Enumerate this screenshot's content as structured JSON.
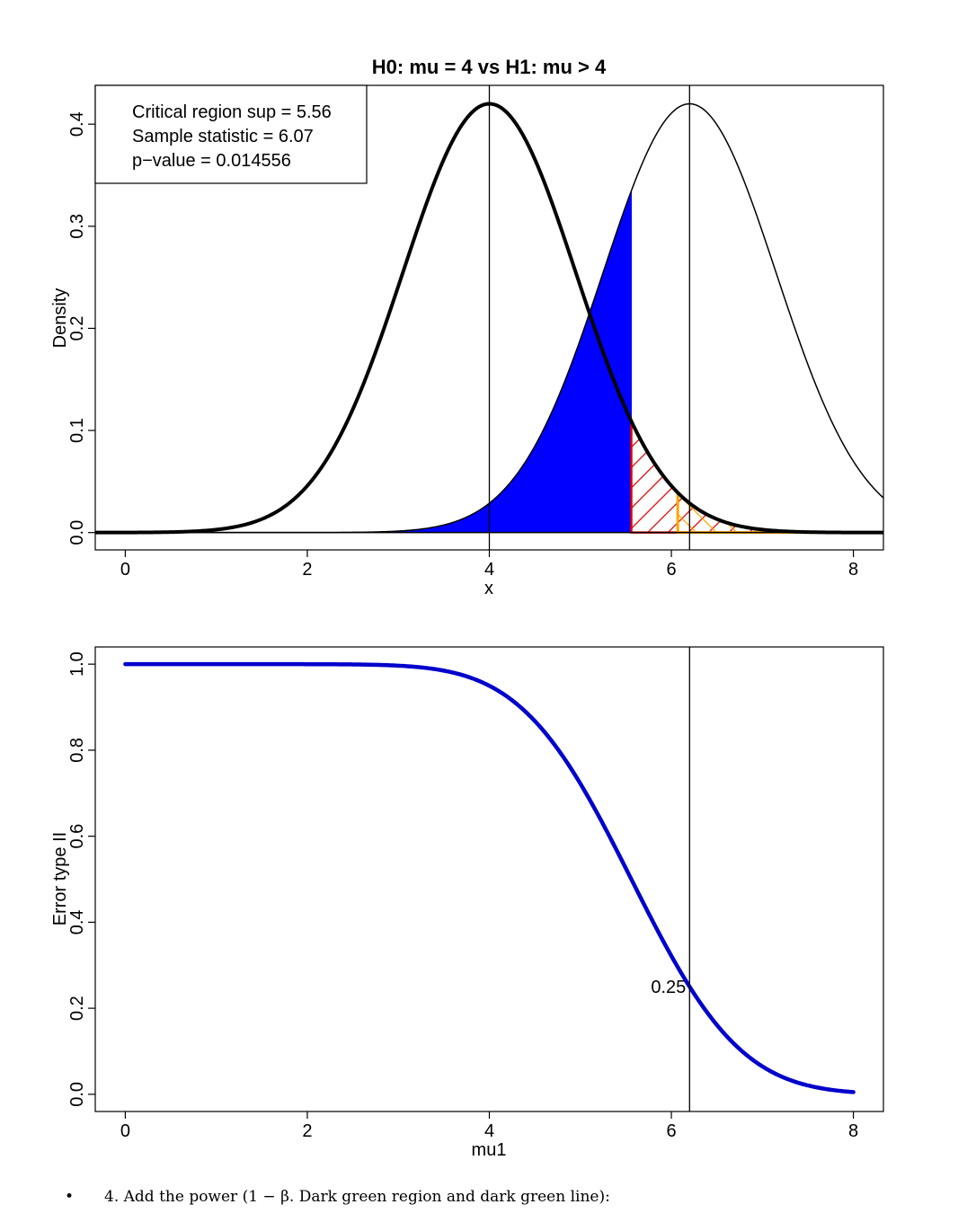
{
  "chart_data": [
    {
      "type": "line",
      "title": "H0: mu =  4 vs H1: mu > 4",
      "xlabel": "x",
      "ylabel": "Density",
      "xlim": [
        -0.33,
        8.33
      ],
      "ylim": [
        -0.017,
        0.438
      ],
      "x_ticks": [
        "0",
        "2",
        "4",
        "6",
        "8"
      ],
      "y_ticks": [
        "0.0",
        "0.1",
        "0.2",
        "0.3",
        "0.4"
      ],
      "series": [
        {
          "distribution": "normal",
          "mean": 4,
          "sd": 0.95,
          "color": "#000000",
          "line": "thick"
        },
        {
          "distribution": "normal",
          "mean": 6.2,
          "sd": 0.95,
          "color": "#000000",
          "line": "thin"
        }
      ],
      "vertical_lines": [
        4,
        6.2
      ],
      "shaded_regions": [
        {
          "from": 2.5,
          "to": 5.56,
          "under_mean": 6.2,
          "fill": "#0000ff",
          "style": "solid"
        },
        {
          "from": 5.56,
          "to": 8.33,
          "under_mean": 4,
          "color": "#e00000",
          "style": "hatched"
        },
        {
          "from": 6.07,
          "to": 8.33,
          "under_mean": 4,
          "color": "#ffa500",
          "style": "hatched"
        }
      ],
      "legend": {
        "position": "top-left",
        "lines": [
          "Critical region sup = 5.56",
          "Sample statistic = 6.07",
          "p−value = 0.014556"
        ]
      }
    },
    {
      "type": "line",
      "title": "",
      "xlabel": "mu1",
      "ylabel": "Error type II",
      "xlim": [
        -0.33,
        8.33
      ],
      "ylim": [
        -0.04,
        1.04
      ],
      "x_ticks": [
        "0",
        "2",
        "4",
        "6",
        "8"
      ],
      "y_ticks": [
        "0.0",
        "0.2",
        "0.4",
        "0.6",
        "0.8",
        "1.0"
      ],
      "series": [
        {
          "function": "beta(mu1) = pnorm((5.56 - mu1)/sd)",
          "critical": 5.56,
          "sd": 0.95,
          "x_range": [
            0,
            8
          ],
          "color": "#0000cc"
        }
      ],
      "vertical_lines": [
        6.2
      ],
      "annotations": [
        {
          "x": 6.2,
          "y": 0.25,
          "text": "0.25"
        }
      ]
    }
  ],
  "caption": {
    "bullet": "•",
    "text": "4.  Add the power (1 − β. Dark green region and dark green line):"
  }
}
